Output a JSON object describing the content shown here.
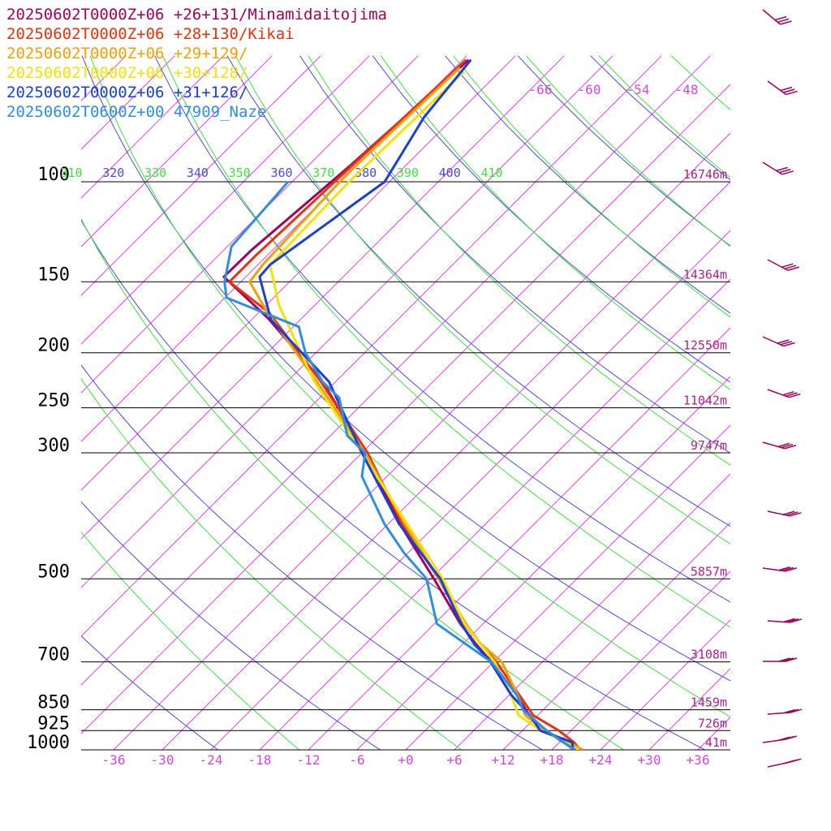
{
  "legend": [
    {
      "label": "20250602T0000Z+06 +26+131/Minamidaitojima",
      "color": "#a0005a"
    },
    {
      "label": "20250602T0000Z+06 +28+130/Kikai",
      "color": "#e8320c"
    },
    {
      "label": "20250602T0000Z+06 +29+129/",
      "color": "#f2a007"
    },
    {
      "label": "20250602T0000Z+06 +30+128/",
      "color": "#f2e20a"
    },
    {
      "label": "20250602T0000Z+06 +31+126/",
      "color": "#1a3fd8"
    },
    {
      "label": "20250602T0600Z+00 47909_Naze",
      "color": "#2f8de4"
    }
  ],
  "chart_data": {
    "type": "line",
    "title": "",
    "xlabel": "",
    "ylabel": "",
    "x_tick_labels": [
      "-36",
      "-30",
      "-24",
      "-18",
      "-12",
      "-6",
      "+0",
      "+6",
      "+12",
      "+18",
      "+24",
      "+30",
      "+36"
    ],
    "pressure_levels": [
      {
        "p": 100,
        "label": "100",
        "height": "16746m"
      },
      {
        "p": 150,
        "label": "150",
        "height": "14364m"
      },
      {
        "p": 200,
        "label": "200",
        "height": "12550m"
      },
      {
        "p": 250,
        "label": "250",
        "height": "11042m"
      },
      {
        "p": 300,
        "label": "300",
        "height": "9747m"
      },
      {
        "p": 500,
        "label": "500",
        "height": "5857m"
      },
      {
        "p": 700,
        "label": "700",
        "height": "3108m"
      },
      {
        "p": 850,
        "label": "850",
        "height": "1459m"
      },
      {
        "p": 925,
        "label": "925",
        "height": "726m"
      },
      {
        "p": 1000,
        "label": "1000",
        "height": "41m"
      }
    ],
    "isotherm_top_labels": [
      "-66",
      "-60",
      "-54",
      "-48"
    ],
    "theta_labels": [
      "310",
      "320",
      "330",
      "340",
      "350",
      "360",
      "370",
      "380",
      "390",
      "400",
      "410"
    ],
    "series": [
      {
        "color": "#a0005a",
        "points": [
          [
            61,
            -77.3
          ],
          [
            93,
            -78.8
          ],
          [
            132,
            -80.6
          ],
          [
            147,
            -80.7
          ],
          [
            174,
            -70.1
          ],
          [
            225,
            -55.6
          ],
          [
            300,
            -41.5
          ],
          [
            400,
            -28.6
          ],
          [
            500,
            -17.6
          ],
          [
            600,
            -8.8
          ],
          [
            650,
            -4.5
          ],
          [
            700,
            -0.3
          ],
          [
            800,
            6.9
          ],
          [
            870,
            11.0
          ],
          [
            925,
            14.8
          ],
          [
            970,
            18.5
          ],
          [
            1000,
            20.8
          ]
        ]
      },
      {
        "color": "#e8320c",
        "points": [
          [
            61,
            -77.6
          ],
          [
            93,
            -78.6
          ],
          [
            135,
            -79.4
          ],
          [
            150,
            -79.4
          ],
          [
            170,
            -70.7
          ],
          [
            225,
            -55.8
          ],
          [
            300,
            -41.3
          ],
          [
            400,
            -28.3
          ],
          [
            500,
            -17.0
          ],
          [
            600,
            -8.4
          ],
          [
            700,
            0.3
          ],
          [
            800,
            7.2
          ],
          [
            870,
            11.5
          ],
          [
            925,
            16.5
          ],
          [
            970,
            19.8
          ],
          [
            1000,
            21.5
          ]
        ]
      },
      {
        "color": "#f2a007",
        "points": [
          [
            63,
            -77.4
          ],
          [
            97,
            -78.2
          ],
          [
            140,
            -77.4
          ],
          [
            150,
            -76.9
          ],
          [
            170,
            -70.9
          ],
          [
            225,
            -56.3
          ],
          [
            300,
            -41.6
          ],
          [
            400,
            -28.0
          ],
          [
            500,
            -17.0
          ],
          [
            600,
            -8.1
          ],
          [
            650,
            -3.9
          ],
          [
            700,
            1.0
          ],
          [
            800,
            7.0
          ],
          [
            870,
            10.5
          ],
          [
            925,
            14.8
          ],
          [
            970,
            19.2
          ],
          [
            1000,
            21.8
          ]
        ]
      },
      {
        "color": "#f2e20a",
        "points": [
          [
            64,
            -76.4
          ],
          [
            100,
            -77.0
          ],
          [
            140,
            -76.5
          ],
          [
            165,
            -70.4
          ],
          [
            225,
            -56.6
          ],
          [
            300,
            -42.0
          ],
          [
            400,
            -27.7
          ],
          [
            500,
            -16.5
          ],
          [
            600,
            -8.3
          ],
          [
            700,
            0.1
          ],
          [
            800,
            6.2
          ],
          [
            870,
            9.7
          ],
          [
            925,
            14.3
          ],
          [
            970,
            18.8
          ],
          [
            1000,
            21.3
          ]
        ]
      },
      {
        "color": "#1a3fd8",
        "points": [
          [
            61,
            -77.0
          ],
          [
            77,
            -75.7
          ],
          [
            100,
            -72.6
          ],
          [
            140,
            -76.5
          ],
          [
            147,
            -76.3
          ],
          [
            175,
            -69.6
          ],
          [
            225,
            -54.8
          ],
          [
            300,
            -42.0
          ],
          [
            400,
            -28.7
          ],
          [
            500,
            -16.8
          ],
          [
            600,
            -8.7
          ],
          [
            650,
            -4.7
          ],
          [
            700,
            -0.4
          ],
          [
            800,
            6.2
          ],
          [
            870,
            11.1
          ],
          [
            925,
            14.2
          ],
          [
            970,
            19.6
          ],
          [
            1000,
            20.6
          ]
        ]
      },
      {
        "color": "#2f8de4",
        "points": [
          [
            100,
            -84.5
          ],
          [
            130,
            -83.5
          ],
          [
            150,
            -80.0
          ],
          [
            160,
            -77.8
          ],
          [
            180,
            -65.3
          ],
          [
            200,
            -61.3
          ],
          [
            225,
            -55.6
          ],
          [
            240,
            -51.6
          ],
          [
            280,
            -45.9
          ],
          [
            300,
            -41.6
          ],
          [
            330,
            -39.1
          ],
          [
            400,
            -30.5
          ],
          [
            450,
            -24.5
          ],
          [
            500,
            -18.5
          ],
          [
            600,
            -11.7
          ],
          [
            700,
            -0.3
          ],
          [
            800,
            6.9
          ],
          [
            850,
            9.5
          ],
          [
            925,
            15.0
          ],
          [
            970,
            18.5
          ],
          [
            1000,
            20.9
          ]
        ]
      }
    ]
  }
}
